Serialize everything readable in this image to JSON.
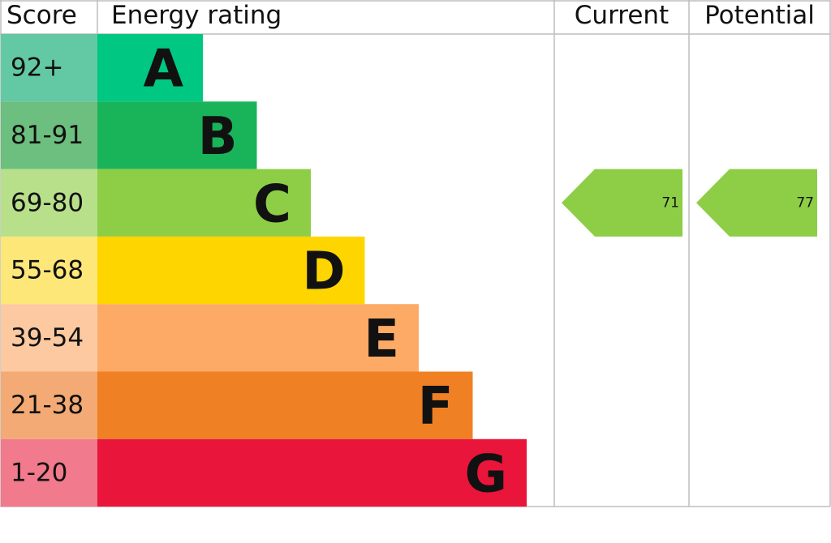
{
  "header": {
    "score": "Score",
    "rating": "Energy rating",
    "current": "Current",
    "potential": "Potential"
  },
  "bands": [
    {
      "score": "92+",
      "letter": "A",
      "color": "#00c781",
      "score_color": "#63c9a5"
    },
    {
      "score": "81-91",
      "letter": "B",
      "color": "#19b459",
      "score_color": "#6cbf7e"
    },
    {
      "score": "69-80",
      "letter": "C",
      "color": "#8dce46",
      "score_color": "#b8e08a"
    },
    {
      "score": "55-68",
      "letter": "D",
      "color": "#ffd500",
      "score_color": "#fee779"
    },
    {
      "score": "39-54",
      "letter": "E",
      "color": "#fcaa65",
      "score_color": "#fdc9a1"
    },
    {
      "score": "21-38",
      "letter": "F",
      "color": "#ef8023",
      "score_color": "#f3aa74"
    },
    {
      "score": "1-20",
      "letter": "G",
      "color": "#e9153b",
      "score_color": "#f17a8c"
    }
  ],
  "current": "71",
  "potential": "77"
}
